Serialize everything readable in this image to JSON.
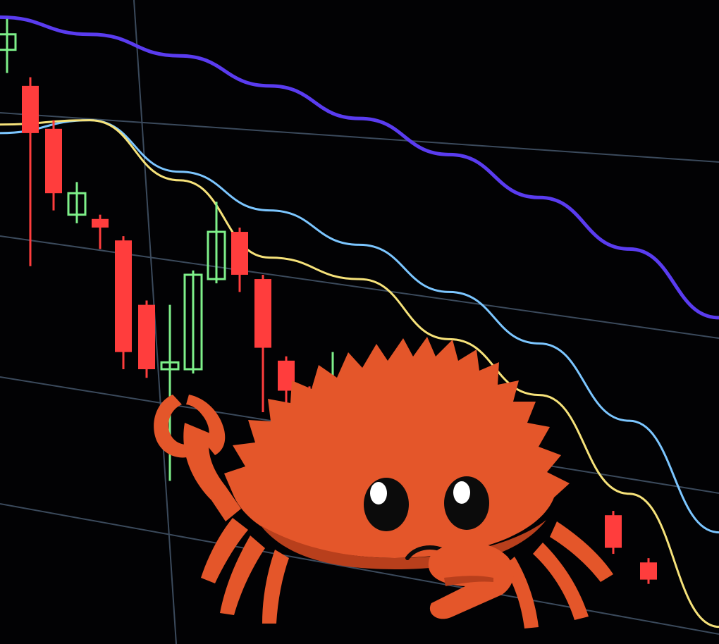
{
  "scene": {
    "background": "#020204",
    "gridline_color": "#3b4a5c",
    "bull_color": "#7ef08a",
    "bear_color": "#ff3d3d",
    "mascot": {
      "name_icon": "ferris-crab-icon",
      "body_color": "#e4562a",
      "shadow_color": "#b83f1c",
      "eye_color": "#0b0b0b",
      "eye_highlight": "#ffffff",
      "mood": "sad"
    }
  },
  "chart_data": {
    "type": "candlestick",
    "title": "",
    "xlabel": "",
    "ylabel": "",
    "trend": "downtrend",
    "candles": [
      {
        "dir": "up",
        "open": 842,
        "close": 860,
        "high": 878,
        "low": 815
      },
      {
        "dir": "down",
        "open": 800,
        "close": 745,
        "high": 810,
        "low": 590
      },
      {
        "dir": "down",
        "open": 750,
        "close": 675,
        "high": 760,
        "low": 655
      },
      {
        "dir": "up",
        "open": 650,
        "close": 675,
        "high": 688,
        "low": 640
      },
      {
        "dir": "down",
        "open": 645,
        "close": 635,
        "high": 650,
        "low": 610
      },
      {
        "dir": "down",
        "open": 620,
        "close": 490,
        "high": 625,
        "low": 470
      },
      {
        "dir": "down",
        "open": 545,
        "close": 470,
        "high": 550,
        "low": 460
      },
      {
        "dir": "up",
        "open": 470,
        "close": 478,
        "high": 545,
        "low": 340
      },
      {
        "dir": "up",
        "open": 470,
        "close": 580,
        "high": 585,
        "low": 465
      },
      {
        "dir": "up",
        "open": 575,
        "close": 630,
        "high": 665,
        "low": 570
      },
      {
        "dir": "down",
        "open": 630,
        "close": 580,
        "high": 635,
        "low": 560
      },
      {
        "dir": "down",
        "open": 575,
        "close": 495,
        "high": 580,
        "low": 420
      },
      {
        "dir": "down",
        "open": 480,
        "close": 445,
        "high": 485,
        "low": 365
      },
      {
        "dir": "down",
        "open": 447,
        "close": 410,
        "high": 450,
        "low": 385
      },
      {
        "dir": "up",
        "open": 405,
        "close": 415,
        "high": 490,
        "low": 395
      },
      {
        "dir": "up",
        "open": 405,
        "close": 412,
        "high": 460,
        "low": 400
      },
      {
        "dir": "down",
        "open": 412,
        "close": 395,
        "high": 415,
        "low": 385
      },
      {
        "dir": "down",
        "open": 300,
        "close": 262,
        "high": 305,
        "low": 255
      },
      {
        "dir": "down",
        "open": 245,
        "close": 225,
        "high": 250,
        "low": 220
      }
    ],
    "series": [
      {
        "color": "#5a3cf0",
        "values": [
          880,
          860,
          835,
          800,
          762,
          720,
          670,
          610,
          530
        ]
      },
      {
        "color": "#7cc6ff",
        "values": [
          745,
          760,
          700,
          655,
          615,
          560,
          500,
          410,
          280
        ]
      },
      {
        "color": "#f6e27a",
        "values": [
          755,
          760,
          690,
          600,
          575,
          505,
          440,
          325,
          170
        ]
      }
    ]
  }
}
